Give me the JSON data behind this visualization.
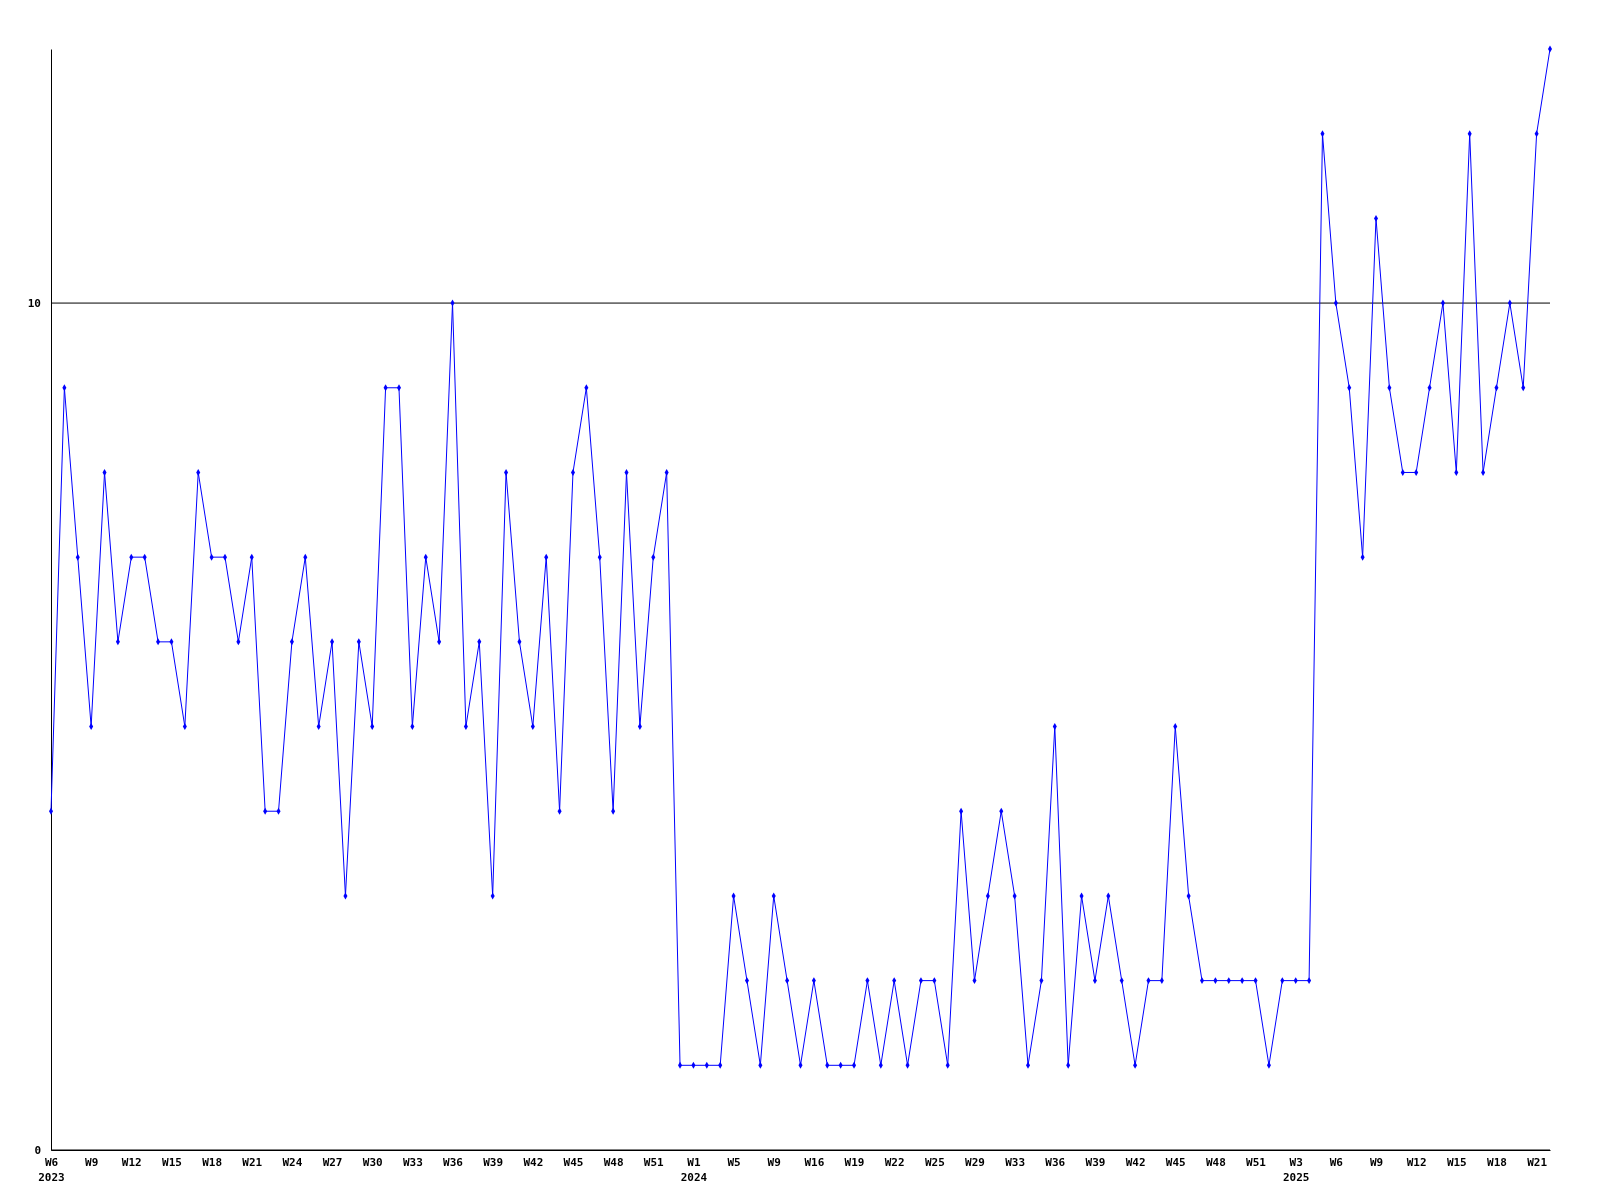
{
  "chart_data": {
    "type": "line",
    "categories": [
      "W6\n2023",
      null,
      null,
      "W9",
      null,
      null,
      "W12",
      null,
      null,
      "W15",
      null,
      null,
      "W18",
      null,
      null,
      "W21",
      null,
      null,
      "W24",
      null,
      null,
      "W27",
      null,
      null,
      "W30",
      null,
      null,
      "W33",
      null,
      null,
      "W36",
      null,
      null,
      "W39",
      null,
      null,
      "W42",
      null,
      null,
      "W45",
      null,
      null,
      "W48",
      null,
      null,
      "W51",
      null,
      null,
      "W1\n2024",
      null,
      null,
      "W5",
      null,
      null,
      "W9",
      null,
      null,
      "W16",
      null,
      null,
      "W19",
      null,
      null,
      "W22",
      null,
      null,
      "W25",
      null,
      null,
      "W29",
      null,
      null,
      "W33",
      null,
      null,
      "W36",
      null,
      null,
      "W39",
      null,
      null,
      "W42",
      null,
      null,
      "W45",
      null,
      null,
      "W48",
      null,
      null,
      "W51",
      null,
      null,
      "W3\n2025",
      null,
      null,
      "W6",
      null,
      null,
      "W9",
      null,
      null,
      "W12",
      null,
      null,
      "W15",
      null,
      null,
      "W18",
      null,
      null,
      "W21",
      null
    ],
    "series": [
      {
        "color": "#0000ff",
        "values": [
          4,
          9,
          7,
          5,
          8,
          6,
          7,
          7,
          6,
          6,
          5,
          8,
          7,
          7,
          6,
          7,
          4,
          4,
          6,
          7,
          5,
          6,
          3,
          6,
          5,
          9,
          9,
          5,
          7,
          6,
          10,
          5,
          6,
          3,
          8,
          6,
          5,
          7,
          4,
          8,
          9,
          7,
          4,
          8,
          5,
          7,
          8,
          1,
          1,
          1,
          1,
          3,
          2,
          1,
          3,
          2,
          1,
          2,
          1,
          1,
          1,
          2,
          1,
          2,
          1,
          2,
          2,
          1,
          4,
          2,
          3,
          4,
          3,
          1,
          2,
          5,
          1,
          3,
          2,
          3,
          2,
          1,
          2,
          2,
          5,
          3,
          2,
          2,
          2,
          2,
          2,
          1,
          2,
          2,
          2,
          12,
          10,
          9,
          7,
          11,
          9,
          8,
          8,
          9,
          10,
          8,
          12,
          8,
          9,
          10,
          9,
          12,
          13
        ]
      }
    ],
    "ylim": [
      0,
      13
    ],
    "yticks": [
      0,
      10
    ],
    "grid": "y",
    "marker": "diamond",
    "line_style": "solid"
  }
}
